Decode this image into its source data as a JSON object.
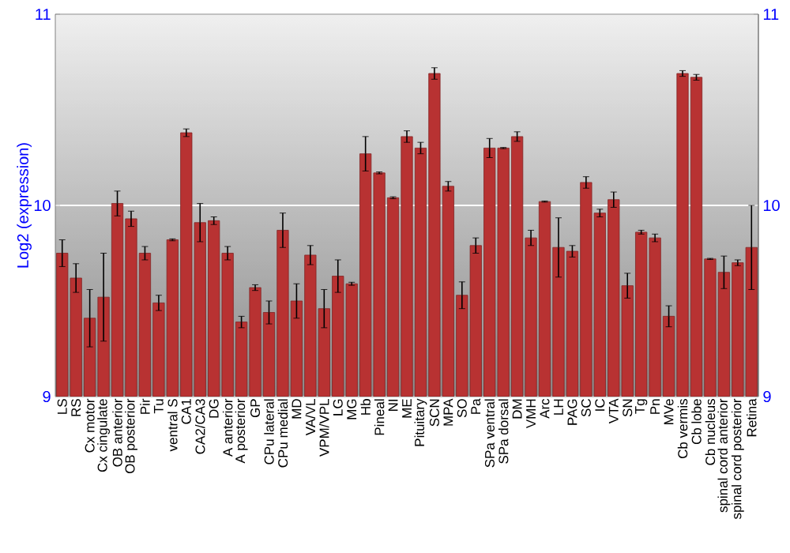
{
  "chart_data": {
    "type": "bar",
    "ylabel": "Log2 (expression)",
    "categories": [
      "LS",
      "RS",
      "Cx motor",
      "Cx cingulate",
      "OB anterior",
      "OB posterior",
      "Pir",
      "Tu",
      "ventral S",
      "CA1",
      "CA2/CA3",
      "DG",
      "A anterior",
      "A posterior",
      "GP",
      "CPu lateral",
      "CPu medial",
      "MD",
      "VA/VL",
      "VPM/VPL",
      "LG",
      "MG",
      "Hb",
      "Pineal",
      "NI",
      "ME",
      "Pituitary",
      "SCN",
      "MPA",
      "SO",
      "Pa",
      "SPa ventral",
      "SPa dorsal",
      "DM",
      "VMH",
      "Arc",
      "LH",
      "PAG",
      "SC",
      "IC",
      "VTA",
      "SN",
      "Tg",
      "Pn",
      "MVe",
      "Cb vermis",
      "Cb lobe",
      "Cb nucleus",
      "spinal cord anterior",
      "spinal cord posterior",
      "Retina"
    ],
    "values": [
      9.75,
      9.62,
      9.41,
      9.52,
      10.01,
      9.93,
      9.75,
      9.49,
      9.82,
      10.38,
      9.91,
      9.92,
      9.75,
      9.39,
      9.57,
      9.44,
      9.87,
      9.5,
      9.74,
      9.46,
      9.63,
      9.59,
      10.27,
      10.17,
      10.04,
      10.36,
      10.3,
      10.69,
      10.1,
      9.53,
      9.79,
      10.3,
      10.3,
      10.36,
      9.83,
      10.02,
      9.78,
      9.76,
      10.12,
      9.96,
      10.03,
      9.58,
      9.86,
      9.83,
      9.42,
      10.69,
      10.67,
      9.72,
      9.65,
      9.7,
      9.78
    ],
    "errors": [
      0.07,
      0.075,
      0.15,
      0.23,
      0.065,
      0.04,
      0.035,
      0.04,
      0.005,
      0.02,
      0.1,
      0.02,
      0.035,
      0.03,
      0.015,
      0.06,
      0.09,
      0.09,
      0.05,
      0.1,
      0.085,
      0.008,
      0.09,
      0.005,
      0.005,
      0.03,
      0.03,
      0.03,
      0.025,
      0.07,
      0.04,
      0.05,
      0.003,
      0.025,
      0.04,
      0.003,
      0.155,
      0.03,
      0.03,
      0.02,
      0.04,
      0.065,
      0.01,
      0.02,
      0.055,
      0.015,
      0.015,
      0.003,
      0.085,
      0.015,
      0.22
    ],
    "color": "#b83232",
    "ylim": [
      9,
      11
    ],
    "yticks": [
      9,
      10,
      11
    ],
    "y2lim": [
      9,
      11
    ],
    "y2ticks": [
      9,
      10,
      11
    ],
    "grid": "y"
  }
}
